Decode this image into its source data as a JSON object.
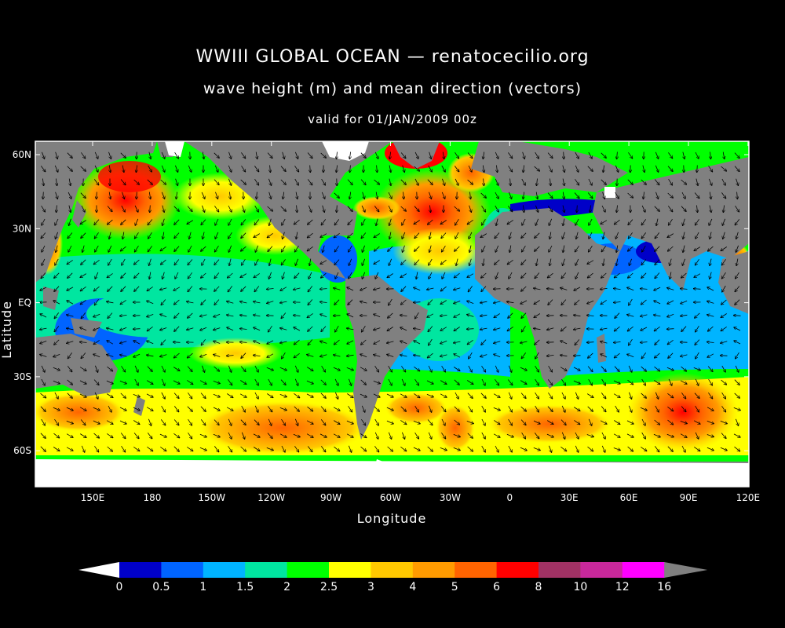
{
  "header": {
    "title": "WWIII GLOBAL OCEAN — renatocecilio.org",
    "subtitle": "wave height (m) and mean direction (vectors)",
    "valid": "valid for 01/JAN/2009 00z"
  },
  "axes": {
    "xlabel": "Longitude",
    "ylabel": "Latitude",
    "xticks": [
      "150E",
      "180",
      "150W",
      "120W",
      "90W",
      "60W",
      "30W",
      "0",
      "30E",
      "60E",
      "90E",
      "120E"
    ],
    "yticks": [
      "60N",
      "30N",
      "EQ",
      "30S",
      "60S"
    ]
  },
  "colorbar": {
    "labels": [
      "0",
      "0.5",
      "1",
      "1.5",
      "2",
      "2.5",
      "3",
      "4",
      "5",
      "6",
      "8",
      "10",
      "12",
      "16"
    ],
    "colors": [
      "#0000c8",
      "#0064ff",
      "#00b4ff",
      "#00e6a0",
      "#00ff00",
      "#ffff00",
      "#ffc800",
      "#ff9b00",
      "#ff6400",
      "#ff0000",
      "#a03264",
      "#c8289b",
      "#ff00ff"
    ],
    "under_color": "#ffffff",
    "over_color": "#808080"
  },
  "map": {
    "land_color": "#808080",
    "ice_color": "#ffffff",
    "frame_color": "#ffffff"
  }
}
